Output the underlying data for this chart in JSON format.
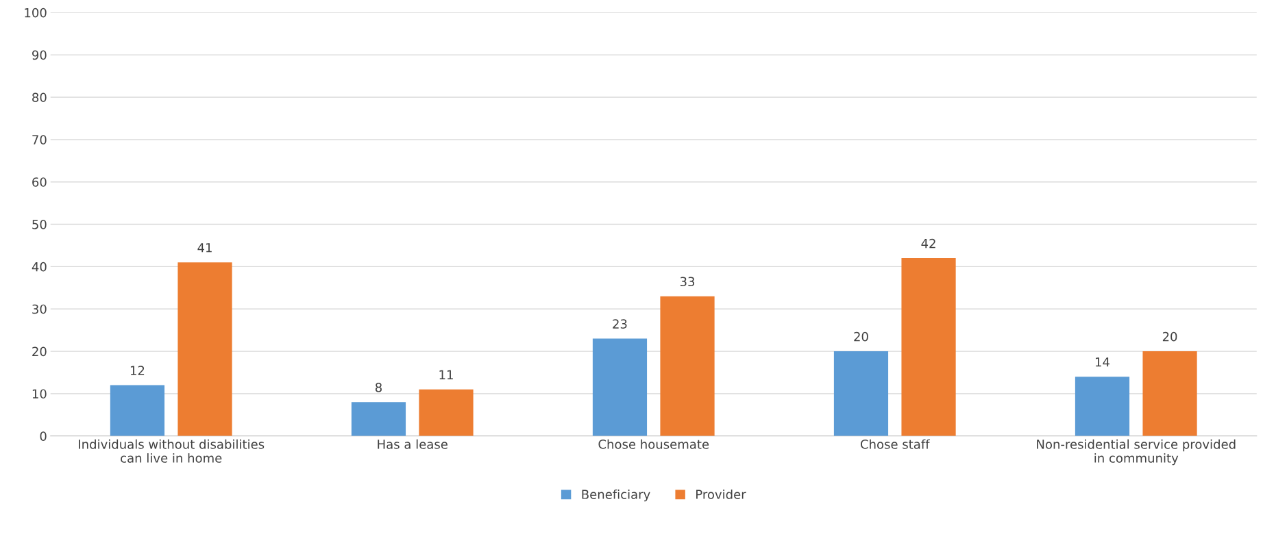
{
  "chart_data": {
    "type": "bar",
    "categories": [
      "Individuals without disabilities\ncan live in home",
      "Has a lease",
      "Chose housemate",
      "Chose staff",
      "Non-residential service provided\nin community"
    ],
    "series": [
      {
        "name": "Beneficiary",
        "color": "#5b9bd5",
        "values": [
          12,
          8,
          23,
          20,
          14
        ]
      },
      {
        "name": "Provider",
        "color": "#ed7d31",
        "values": [
          41,
          11,
          33,
          42,
          20
        ]
      }
    ],
    "ylim": [
      0,
      100
    ],
    "yticks": [
      0,
      10,
      20,
      30,
      40,
      50,
      60,
      70,
      80,
      90,
      100
    ],
    "grid": "y",
    "legend": "bottom",
    "data_labels": true
  }
}
